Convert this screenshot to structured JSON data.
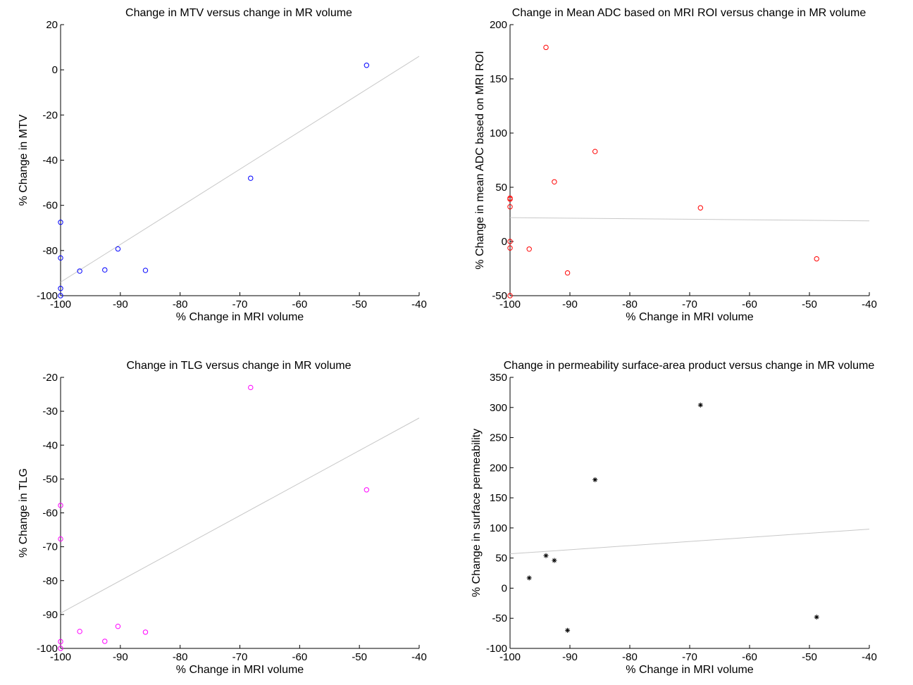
{
  "chart_data": [
    {
      "type": "scatter",
      "title": "Change in MTV versus change in MR volume",
      "xlabel": "% Change in MRI volume",
      "ylabel": "% Change in MTV",
      "xlim": [
        -100,
        -40
      ],
      "ylim": [
        -100,
        20
      ],
      "xticks": [
        -100,
        -90,
        -80,
        -70,
        -60,
        -50,
        -40
      ],
      "yticks": [
        -100,
        -80,
        -60,
        -40,
        -20,
        0,
        20
      ],
      "xtick_labels": [
        "-100",
        "-90",
        "-80",
        "-70",
        "-60",
        "-50",
        "-40"
      ],
      "ytick_labels": [
        "-100",
        "-80",
        "-60",
        "-40",
        "-20",
        "0",
        "20"
      ],
      "marker": "circle",
      "color": "#0000ff",
      "x": [
        -100,
        -100,
        -100,
        -100,
        -96.8,
        -92.6,
        -90.4,
        -85.8,
        -68.2,
        -48.8
      ],
      "y": [
        -67.5,
        -83.3,
        -96.8,
        -100,
        -89.1,
        -88.6,
        -79.3,
        -88.8,
        -48,
        2
      ],
      "fit_line": {
        "x": [
          -100,
          -40
        ],
        "y": [
          -94,
          6
        ],
        "color": "#c8c8c8"
      }
    },
    {
      "type": "scatter",
      "title": "Change in Mean ADC based on MRI ROI versus change in MR volume",
      "xlabel": "% Change in MRI volume",
      "ylabel": "% Change in mean ADC based on MRI ROI",
      "xlim": [
        -100,
        -40
      ],
      "ylim": [
        -50,
        200
      ],
      "xticks": [
        -100,
        -90,
        -80,
        -70,
        -60,
        -50,
        -40
      ],
      "yticks": [
        -50,
        0,
        50,
        100,
        150,
        200
      ],
      "xtick_labels": [
        "-100",
        "-90",
        "-80",
        "-70",
        "-60",
        "-50",
        "-40"
      ],
      "ytick_labels": [
        "-50",
        "0",
        "50",
        "100",
        "150",
        "200"
      ],
      "marker": "circle",
      "color": "#ff0000",
      "x": [
        -100,
        -100,
        -100,
        -100,
        -100,
        -100,
        -96.8,
        -94,
        -92.6,
        -90.4,
        -85.8,
        -68.2,
        -48.8
      ],
      "y": [
        40,
        39,
        32,
        0,
        -6,
        -50,
        -7,
        179,
        55,
        -29,
        83,
        31,
        -16
      ],
      "fit_line": {
        "x": [
          -100,
          -40
        ],
        "y": [
          22,
          19
        ],
        "color": "#c8c8c8"
      }
    },
    {
      "type": "scatter",
      "title": "Change in TLG versus change in MR volume",
      "xlabel": "% Change in MRI volume",
      "ylabel": "% Change in TLG",
      "xlim": [
        -100,
        -40
      ],
      "ylim": [
        -100,
        -20
      ],
      "xticks": [
        -100,
        -90,
        -80,
        -70,
        -60,
        -50,
        -40
      ],
      "yticks": [
        -100,
        -90,
        -80,
        -70,
        -60,
        -50,
        -40,
        -30,
        -20
      ],
      "xtick_labels": [
        "-100",
        "-90",
        "-80",
        "-70",
        "-60",
        "-50",
        "-40"
      ],
      "ytick_labels": [
        "-100",
        "-90",
        "-80",
        "-70",
        "-60",
        "-50",
        "-40",
        "-30",
        "-20"
      ],
      "marker": "circle",
      "color": "#ff00ff",
      "x": [
        -100,
        -100,
        -100,
        -100,
        -96.8,
        -92.6,
        -90.4,
        -85.8,
        -68.2,
        -48.8
      ],
      "y": [
        -57.8,
        -67.7,
        -98,
        -100,
        -95,
        -97.9,
        -93.5,
        -95.2,
        -23,
        -53.2
      ],
      "fit_line": {
        "x": [
          -100,
          -40
        ],
        "y": [
          -89.6,
          -32
        ],
        "color": "#c8c8c8"
      }
    },
    {
      "type": "scatter",
      "title": "Change in permeability surface-area product versus change in MR volume",
      "xlabel": "% Change in MRI volume",
      "ylabel": "% Change in surface permeability",
      "xlim": [
        -100,
        -40
      ],
      "ylim": [
        -100,
        350
      ],
      "xticks": [
        -100,
        -90,
        -80,
        -70,
        -60,
        -50,
        -40
      ],
      "yticks": [
        -100,
        -50,
        0,
        50,
        100,
        150,
        200,
        250,
        300,
        350
      ],
      "xtick_labels": [
        "-100",
        "-90",
        "-80",
        "-70",
        "-60",
        "-50",
        "-40"
      ],
      "ytick_labels": [
        "-100",
        "-50",
        "0",
        "50",
        "100",
        "150",
        "200",
        "250",
        "300",
        "350"
      ],
      "marker": "star",
      "color": "#000000",
      "x": [
        -96.8,
        -94,
        -92.6,
        -90.4,
        -85.8,
        -68.2,
        -48.8
      ],
      "y": [
        17,
        54,
        46,
        -70,
        180,
        304,
        -48
      ],
      "fit_line": {
        "x": [
          -100,
          -40
        ],
        "y": [
          57,
          98
        ],
        "color": "#c8c8c8"
      }
    }
  ]
}
